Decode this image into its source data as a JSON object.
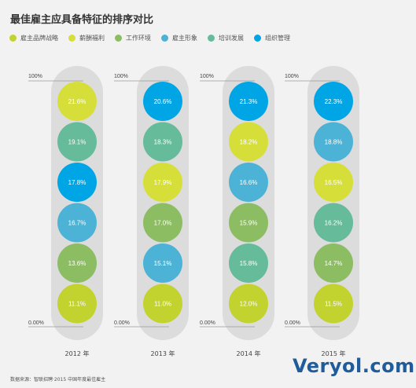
{
  "title": "最佳雇主应具备特征的排序对比",
  "legend": [
    {
      "label": "雇主品牌战略",
      "color": "#c2d22e"
    },
    {
      "label": "薪酬福利",
      "color": "#d6df3a"
    },
    {
      "label": "工作环境",
      "color": "#8dbd62"
    },
    {
      "label": "雇主形象",
      "color": "#4cb3d6"
    },
    {
      "label": "培训发展",
      "color": "#66bb9a"
    },
    {
      "label": "组织管理",
      "color": "#00a5e6"
    }
  ],
  "source": "数据来源：智联招聘·2015 中国年度最佳雇主",
  "watermark": "Veryol.com",
  "chart_data": {
    "type": "bubble-column",
    "ylim_labels": [
      "100%",
      "0.00%"
    ],
    "columns": [
      {
        "label": "2012 年",
        "items": [
          {
            "label": "21.6%",
            "value": 21.6,
            "color": "#d6df3a"
          },
          {
            "label": "19.1%",
            "value": 19.1,
            "color": "#66bb9a"
          },
          {
            "label": "17.8%",
            "value": 17.8,
            "color": "#00a5e6"
          },
          {
            "label": "16.7%",
            "value": 16.7,
            "color": "#4cb3d6"
          },
          {
            "label": "13.6%",
            "value": 13.6,
            "color": "#8dbd62"
          },
          {
            "label": "11.1%",
            "value": 11.1,
            "color": "#c2d22e"
          }
        ]
      },
      {
        "label": "2013 年",
        "items": [
          {
            "label": "20.6%",
            "value": 20.6,
            "color": "#00a5e6"
          },
          {
            "label": "18.3%",
            "value": 18.3,
            "color": "#66bb9a"
          },
          {
            "label": "17.9%",
            "value": 17.9,
            "color": "#d6df3a"
          },
          {
            "label": "17.0%",
            "value": 17.0,
            "color": "#8dbd62"
          },
          {
            "label": "15.1%",
            "value": 15.1,
            "color": "#4cb3d6"
          },
          {
            "label": "11.0%",
            "value": 11.0,
            "color": "#c2d22e"
          }
        ]
      },
      {
        "label": "2014 年",
        "items": [
          {
            "label": "21.3%",
            "value": 21.3,
            "color": "#00a5e6"
          },
          {
            "label": "18.2%",
            "value": 18.2,
            "color": "#d6df3a"
          },
          {
            "label": "16.6%",
            "value": 16.6,
            "color": "#4cb3d6"
          },
          {
            "label": "15.9%",
            "value": 15.9,
            "color": "#8dbd62"
          },
          {
            "label": "15.8%",
            "value": 15.8,
            "color": "#66bb9a"
          },
          {
            "label": "12.0%",
            "value": 12.0,
            "color": "#c2d22e"
          }
        ]
      },
      {
        "label": "2015 年",
        "items": [
          {
            "label": "22.3%",
            "value": 22.3,
            "color": "#00a5e6"
          },
          {
            "label": "18.8%",
            "value": 18.8,
            "color": "#4cb3d6"
          },
          {
            "label": "16.5%",
            "value": 16.5,
            "color": "#d6df3a"
          },
          {
            "label": "16.2%",
            "value": 16.2,
            "color": "#66bb9a"
          },
          {
            "label": "14.7%",
            "value": 14.7,
            "color": "#8dbd62"
          },
          {
            "label": "11.5%",
            "value": 11.5,
            "color": "#c2d22e"
          }
        ]
      }
    ]
  }
}
